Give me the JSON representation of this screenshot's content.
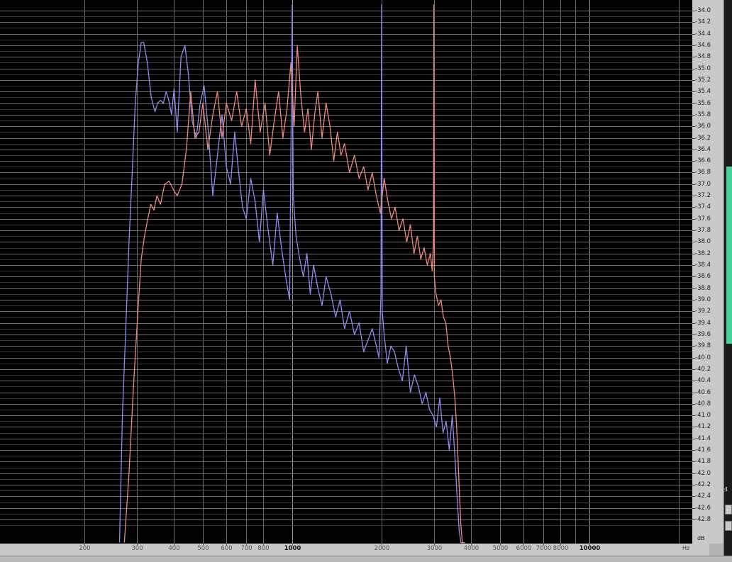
{
  "chart_data": {
    "type": "line",
    "title": "",
    "xlabel": "",
    "ylabel": "",
    "x_scale": "log",
    "xlim": [
      120,
      22000
    ],
    "ylim": [
      -43.2,
      -33.9
    ],
    "y_unit": "dB",
    "x_unit": "Hz",
    "grid": true,
    "legend": "none",
    "y_ticks": [
      "-34.0",
      "-34.2",
      "-34.4",
      "-34.6",
      "-34.8",
      "-35.0",
      "-35.2",
      "-35.4",
      "-35.6",
      "-35.8",
      "-36.0",
      "-36.2",
      "-36.4",
      "-36.6",
      "-36.8",
      "-37.0",
      "-37.2",
      "-37.4",
      "-37.6",
      "-37.8",
      "-38.0",
      "-38.2",
      "-38.4",
      "-38.6",
      "-38.8",
      "-39.0",
      "-39.2",
      "-39.4",
      "-39.6",
      "-39.8",
      "-40.0",
      "-40.2",
      "-40.4",
      "-40.6",
      "-40.8",
      "-41.0",
      "-41.2",
      "-41.4",
      "-41.6",
      "-41.8",
      "-42.0",
      "-42.2",
      "-42.4",
      "-42.6",
      "-42.8"
    ],
    "x_ticks": [
      {
        "value": 200,
        "label": "200"
      },
      {
        "value": 300,
        "label": "300"
      },
      {
        "value": 400,
        "label": "400"
      },
      {
        "value": 500,
        "label": "500"
      },
      {
        "value": 600,
        "label": "600"
      },
      {
        "value": 700,
        "label": "700"
      },
      {
        "value": 800,
        "label": "800"
      },
      {
        "value": 1000,
        "label": "1000"
      },
      {
        "value": 2000,
        "label": "2000"
      },
      {
        "value": 3000,
        "label": "3000"
      },
      {
        "value": 4000,
        "label": "4000"
      },
      {
        "value": 5000,
        "label": "5000"
      },
      {
        "value": 6000,
        "label": "6000"
      },
      {
        "value": 7000,
        "label": "7000"
      },
      {
        "value": 8000,
        "label": "8000"
      },
      {
        "value": 10000,
        "label": "10000"
      }
    ],
    "series": [
      {
        "color": "#8c8cf2",
        "x": [
          262,
          268,
          275,
          282,
          289,
          296,
          303,
          310,
          316,
          325,
          335,
          345,
          352,
          360,
          368,
          376,
          384,
          392,
          400,
          410,
          422,
          435,
          447,
          460,
          475,
          490,
          505,
          520,
          540,
          560,
          580,
          600,
          620,
          640,
          660,
          680,
          700,
          725,
          750,
          775,
          800,
          830,
          860,
          890,
          920,
          950,
          980,
          1000,
          1008,
          1030,
          1060,
          1090,
          1120,
          1150,
          1180,
          1220,
          1260,
          1300,
          1350,
          1400,
          1450,
          1500,
          1560,
          1620,
          1680,
          1740,
          1800,
          1860,
          1920,
          1960,
          1990,
          2000,
          2010,
          2040,
          2090,
          2150,
          2210,
          2280,
          2350,
          2420,
          2500,
          2580,
          2660,
          2740,
          2820,
          2900,
          2980,
          3060,
          3140,
          3220,
          3300,
          3380,
          3460,
          3540,
          3600,
          3650,
          3700,
          3740,
          3800
        ],
        "y": [
          -43.2,
          -41.0,
          -39.5,
          -38.0,
          -36.8,
          -35.6,
          -34.9,
          -34.55,
          -34.55,
          -34.9,
          -35.5,
          -35.75,
          -35.6,
          -35.55,
          -35.6,
          -35.4,
          -35.55,
          -35.8,
          -35.35,
          -36.1,
          -34.8,
          -34.6,
          -35.1,
          -35.9,
          -36.2,
          -35.6,
          -35.3,
          -36.0,
          -37.2,
          -36.5,
          -35.8,
          -36.7,
          -37.0,
          -36.1,
          -36.8,
          -37.4,
          -37.6,
          -36.9,
          -37.3,
          -38.0,
          -37.1,
          -37.8,
          -38.4,
          -37.5,
          -38.1,
          -38.6,
          -39.0,
          -33.9,
          -37.2,
          -37.9,
          -38.3,
          -38.6,
          -38.2,
          -38.9,
          -38.4,
          -38.8,
          -39.1,
          -38.6,
          -38.9,
          -39.3,
          -39.0,
          -39.5,
          -39.2,
          -39.6,
          -39.4,
          -39.9,
          -39.7,
          -39.5,
          -39.8,
          -40.0,
          -38.9,
          -33.9,
          -39.2,
          -39.6,
          -40.1,
          -39.8,
          -39.9,
          -40.2,
          -40.4,
          -39.8,
          -40.6,
          -40.3,
          -40.5,
          -40.8,
          -40.6,
          -40.9,
          -41.0,
          -41.2,
          -40.7,
          -41.3,
          -41.1,
          -41.6,
          -41.0,
          -41.8,
          -42.5,
          -43.0,
          -43.2,
          -43.2,
          -43.2
        ]
      },
      {
        "color": "#ee8a7c",
        "x": [
          272,
          282,
          292,
          302,
          310,
          318,
          326,
          334,
          342,
          350,
          360,
          372,
          385,
          398,
          410,
          425,
          440,
          455,
          470,
          485,
          500,
          520,
          540,
          560,
          580,
          600,
          625,
          650,
          675,
          700,
          725,
          750,
          780,
          810,
          840,
          870,
          900,
          930,
          960,
          990,
          1015,
          1040,
          1070,
          1100,
          1130,
          1160,
          1190,
          1220,
          1260,
          1300,
          1340,
          1380,
          1420,
          1460,
          1500,
          1560,
          1620,
          1680,
          1740,
          1800,
          1860,
          1920,
          1980,
          2040,
          2100,
          2160,
          2220,
          2290,
          2360,
          2430,
          2500,
          2570,
          2640,
          2710,
          2780,
          2850,
          2920,
          2960,
          2990,
          3000,
          3010,
          3050,
          3110,
          3170,
          3230,
          3290,
          3350,
          3410,
          3470,
          3530,
          3580,
          3620,
          3660,
          3700,
          3740,
          3780,
          3820
        ],
        "y": [
          -43.2,
          -42.0,
          -40.5,
          -39.2,
          -38.3,
          -37.9,
          -37.6,
          -37.35,
          -37.45,
          -37.2,
          -37.35,
          -37.0,
          -36.95,
          -37.1,
          -37.2,
          -37.0,
          -36.4,
          -35.4,
          -36.2,
          -36.1,
          -35.6,
          -36.4,
          -35.8,
          -35.4,
          -36.2,
          -35.6,
          -35.9,
          -35.4,
          -36.0,
          -35.7,
          -36.3,
          -35.2,
          -36.1,
          -35.6,
          -36.5,
          -35.9,
          -35.4,
          -36.2,
          -35.7,
          -34.9,
          -36.0,
          -34.6,
          -35.5,
          -36.1,
          -35.7,
          -36.4,
          -35.8,
          -35.4,
          -36.2,
          -35.6,
          -36.0,
          -36.6,
          -36.1,
          -36.5,
          -36.3,
          -36.8,
          -36.5,
          -36.9,
          -36.7,
          -37.1,
          -36.8,
          -37.2,
          -37.5,
          -36.9,
          -37.3,
          -37.6,
          -37.4,
          -37.8,
          -37.6,
          -38.0,
          -37.7,
          -38.2,
          -37.9,
          -38.3,
          -38.1,
          -38.4,
          -38.2,
          -38.5,
          -38.0,
          -33.9,
          -38.6,
          -38.9,
          -39.1,
          -39.0,
          -39.3,
          -39.4,
          -39.8,
          -40.0,
          -40.3,
          -40.7,
          -41.2,
          -41.8,
          -42.4,
          -42.9,
          -43.2,
          -43.2,
          -43.2
        ]
      }
    ]
  },
  "axis": {
    "x_unit_label": "Hz",
    "y_unit_label": "dB"
  },
  "colors": {
    "background": "#000000",
    "grid": "#6e6e6e",
    "series_blue": "#8c8cf2",
    "series_red": "#ee8a7c",
    "waveform": "#47d19a"
  },
  "right_panel": {
    "status_text": "4"
  }
}
